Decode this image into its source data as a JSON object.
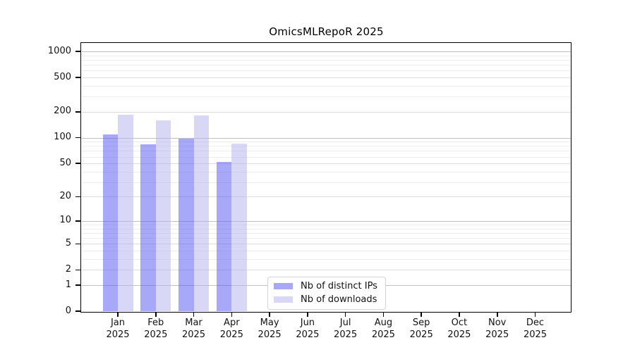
{
  "chart_data": {
    "type": "bar",
    "title": "OmicsMLRepoR 2025",
    "categories": [
      "Jan",
      "Feb",
      "Mar",
      "Apr",
      "May",
      "Jun",
      "Jul",
      "Aug",
      "Sep",
      "Oct",
      "Nov",
      "Dec"
    ],
    "year_label": "2025",
    "series": [
      {
        "key": "distinct-ips",
        "name": "Nb of distinct IPs",
        "color": "#5858F185",
        "values": [
          110,
          84,
          97,
          52,
          0,
          0,
          0,
          0,
          0,
          0,
          0,
          0
        ]
      },
      {
        "key": "downloads",
        "name": "Nb of downloads",
        "color": "#B4B4EE85",
        "values": [
          185,
          160,
          182,
          85,
          0,
          0,
          0,
          0,
          0,
          0,
          0,
          0
        ]
      }
    ],
    "y_ticks": [
      0,
      1,
      2,
      5,
      10,
      20,
      50,
      100,
      200,
      500,
      1000
    ],
    "y_minor_gridlines": [
      3,
      4,
      6,
      7,
      8,
      9,
      30,
      40,
      60,
      70,
      80,
      90,
      300,
      400,
      600,
      700,
      800,
      900
    ],
    "scale": "log1p",
    "ylim": [
      0,
      1230
    ],
    "grid": true,
    "legend_position": "lower center"
  },
  "colors": {
    "background": "#ffffff",
    "axis": "#000000",
    "text": "#111111",
    "major_grid": "#c0c0c0",
    "mid_grid": "#dcdcdc",
    "minor_grid": "#ededed",
    "legend_border": "#d4d4d4",
    "legend_bg": "#ffffff"
  }
}
